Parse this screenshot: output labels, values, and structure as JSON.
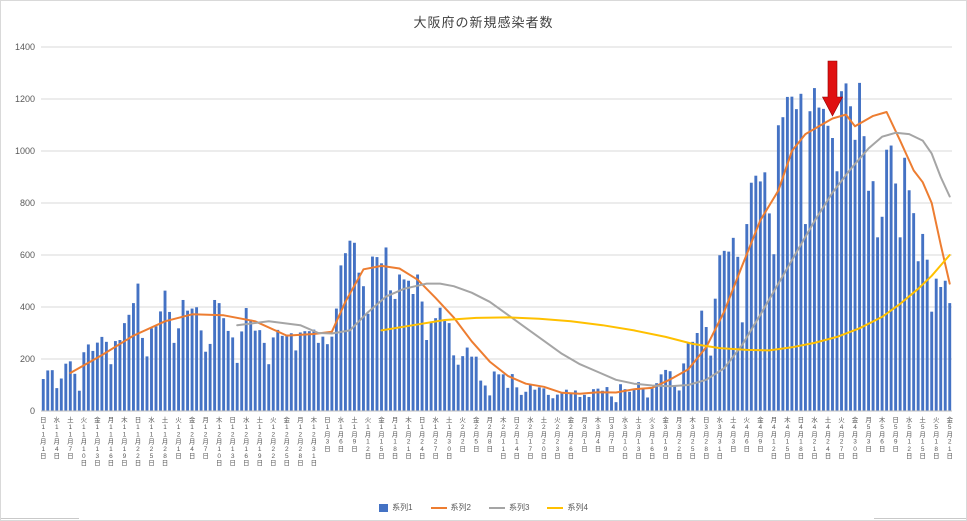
{
  "chart_data": {
    "type": "bar+line",
    "title": "大阪府の新規感染者数",
    "legend_position": "bottom",
    "grid": true,
    "y_axis": {
      "min": 0,
      "max": 1400,
      "step": 200,
      "ticks": [
        0,
        200,
        400,
        600,
        800,
        1000,
        1200,
        1400
      ]
    },
    "n_points": 202,
    "months": [
      {
        "m": "11",
        "days": 30
      },
      {
        "m": "12",
        "days": 31
      },
      {
        "m": "1",
        "days": 31
      },
      {
        "m": "2",
        "days": 28
      },
      {
        "m": "3",
        "days": 31
      },
      {
        "m": "4",
        "days": 30
      },
      {
        "m": "5",
        "days": 21
      }
    ],
    "bar": {
      "name": "系列1",
      "color": "#4472C4",
      "values": [
        123,
        156,
        157,
        88,
        125,
        182,
        191,
        143,
        78,
        226,
        256,
        231,
        263,
        285,
        266,
        180,
        269,
        273,
        338,
        370,
        415,
        490,
        281,
        210,
        318,
        326,
        383,
        463,
        381,
        262,
        318,
        427,
        386,
        394,
        399,
        310,
        228,
        258,
        427,
        415,
        357,
        308,
        283,
        185,
        306,
        396,
        351,
        309,
        311,
        262,
        180,
        283,
        312,
        289,
        294,
        299,
        233,
        302,
        307,
        307,
        313,
        262,
        286,
        257,
        286,
        394,
        560,
        607,
        655,
        647,
        532,
        480,
        374,
        594,
        592,
        568,
        629,
        464,
        431,
        525,
        506,
        501,
        450,
        525,
        421,
        273,
        343,
        357,
        397,
        346,
        338,
        214,
        178,
        211,
        244,
        209,
        209,
        117,
        98,
        60,
        152,
        141,
        141,
        89,
        142,
        91,
        62,
        74,
        100,
        82,
        91,
        87,
        62,
        49,
        63,
        72,
        82,
        69,
        79,
        54,
        62,
        54,
        84,
        86,
        78,
        92,
        56,
        34,
        103,
        84,
        74,
        86,
        111,
        84,
        52,
        87,
        107,
        141,
        158,
        153,
        100,
        79,
        183,
        262,
        266,
        300,
        386,
        323,
        213,
        432,
        599,
        616,
        613,
        666,
        593,
        341,
        719,
        878,
        905,
        883,
        918,
        760,
        603,
        1099,
        1130,
        1208,
        1209,
        1161,
        1220,
        719,
        1153,
        1242,
        1167,
        1162,
        1097,
        1050,
        922,
        1230,
        1260,
        1172,
        1043,
        1262,
        1057,
        847,
        884,
        668,
        747,
        1005,
        1021,
        875,
        668,
        974,
        849,
        761,
        576,
        681,
        582,
        382,
        509,
        477,
        501,
        415
      ]
    },
    "lines": [
      {
        "name": "系列2",
        "color": "#ED7D31",
        "points": [
          [
            6,
            146
          ],
          [
            13,
            215
          ],
          [
            20,
            290
          ],
          [
            27,
            345
          ],
          [
            33,
            372
          ],
          [
            40,
            368
          ],
          [
            47,
            345
          ],
          [
            54,
            290
          ],
          [
            60,
            296
          ],
          [
            64,
            305
          ],
          [
            67,
            420
          ],
          [
            71,
            545
          ],
          [
            75,
            558
          ],
          [
            79,
            548
          ],
          [
            83,
            505
          ],
          [
            87,
            435
          ],
          [
            91,
            360
          ],
          [
            95,
            268
          ],
          [
            99,
            190
          ],
          [
            103,
            135
          ],
          [
            107,
            105
          ],
          [
            111,
            93
          ],
          [
            115,
            70
          ],
          [
            119,
            66
          ],
          [
            123,
            72
          ],
          [
            127,
            71
          ],
          [
            131,
            84
          ],
          [
            135,
            89
          ],
          [
            139,
            121
          ],
          [
            143,
            160
          ],
          [
            147,
            245
          ],
          [
            151,
            383
          ],
          [
            155,
            560
          ],
          [
            159,
            733
          ],
          [
            163,
            848
          ],
          [
            166,
            1000
          ],
          [
            169,
            1065
          ],
          [
            172,
            1095
          ],
          [
            175,
            1125
          ],
          [
            178,
            1140
          ],
          [
            180,
            1095
          ],
          [
            184,
            1135
          ],
          [
            187,
            1150
          ],
          [
            190,
            1040
          ],
          [
            193,
            925
          ],
          [
            195,
            880
          ],
          [
            197,
            800
          ],
          [
            199,
            640
          ],
          [
            201,
            490
          ]
        ]
      },
      {
        "name": "系列3",
        "color": "#A5A5A5",
        "points": [
          [
            43,
            330
          ],
          [
            50,
            345
          ],
          [
            57,
            330
          ],
          [
            61,
            300
          ],
          [
            64,
            298
          ],
          [
            68,
            310
          ],
          [
            72,
            380
          ],
          [
            76,
            440
          ],
          [
            80,
            470
          ],
          [
            85,
            490
          ],
          [
            88,
            490
          ],
          [
            91,
            480
          ],
          [
            95,
            455
          ],
          [
            99,
            420
          ],
          [
            103,
            370
          ],
          [
            107,
            320
          ],
          [
            111,
            270
          ],
          [
            115,
            220
          ],
          [
            119,
            180
          ],
          [
            123,
            150
          ],
          [
            127,
            120
          ],
          [
            131,
            105
          ],
          [
            135,
            98
          ],
          [
            139,
            95
          ],
          [
            143,
            100
          ],
          [
            147,
            120
          ],
          [
            151,
            165
          ],
          [
            155,
            255
          ],
          [
            159,
            370
          ],
          [
            163,
            490
          ],
          [
            167,
            610
          ],
          [
            171,
            730
          ],
          [
            175,
            840
          ],
          [
            179,
            930
          ],
          [
            183,
            1010
          ],
          [
            186,
            1055
          ],
          [
            189,
            1070
          ],
          [
            192,
            1065
          ],
          [
            195,
            1040
          ],
          [
            197,
            990
          ],
          [
            199,
            900
          ],
          [
            201,
            825
          ]
        ]
      },
      {
        "name": "系列4",
        "color": "#FFC000",
        "points": [
          [
            75,
            310
          ],
          [
            82,
            330
          ],
          [
            89,
            350
          ],
          [
            96,
            358
          ],
          [
            103,
            360
          ],
          [
            110,
            355
          ],
          [
            117,
            345
          ],
          [
            124,
            330
          ],
          [
            131,
            310
          ],
          [
            138,
            285
          ],
          [
            144,
            258
          ],
          [
            150,
            242
          ],
          [
            156,
            235
          ],
          [
            161,
            233
          ],
          [
            166,
            245
          ],
          [
            171,
            262
          ],
          [
            176,
            285
          ],
          [
            181,
            318
          ],
          [
            186,
            362
          ],
          [
            190,
            412
          ],
          [
            194,
            470
          ],
          [
            197,
            520
          ],
          [
            199,
            560
          ],
          [
            201,
            600
          ]
        ]
      }
    ],
    "x_ticks": [
      {
        "i": 0,
        "t": "日11月1日"
      },
      {
        "i": 3,
        "t": "水11月4日"
      },
      {
        "i": 6,
        "t": "土11月7日"
      },
      {
        "i": 9,
        "t": "火11月10日"
      },
      {
        "i": 12,
        "t": "金11月13日"
      },
      {
        "i": 15,
        "t": "月11月16日"
      },
      {
        "i": 18,
        "t": "木11月19日"
      },
      {
        "i": 21,
        "t": "日11月22日"
      },
      {
        "i": 24,
        "t": "水11月25日"
      },
      {
        "i": 27,
        "t": "土11月28日"
      },
      {
        "i": 30,
        "t": "火12月1日"
      },
      {
        "i": 33,
        "t": "金12月4日"
      },
      {
        "i": 36,
        "t": "月12月7日"
      },
      {
        "i": 39,
        "t": "木12月10日"
      },
      {
        "i": 42,
        "t": "日12月13日"
      },
      {
        "i": 45,
        "t": "水12月16日"
      },
      {
        "i": 48,
        "t": "土12月19日"
      },
      {
        "i": 51,
        "t": "火12月22日"
      },
      {
        "i": 54,
        "t": "金12月25日"
      },
      {
        "i": 57,
        "t": "月12月28日"
      },
      {
        "i": 60,
        "t": "木12月31日"
      },
      {
        "i": 63,
        "t": "日1月3日"
      },
      {
        "i": 66,
        "t": "水1月6日"
      },
      {
        "i": 69,
        "t": "土1月9日"
      },
      {
        "i": 72,
        "t": "火1月12日"
      },
      {
        "i": 75,
        "t": "金1月15日"
      },
      {
        "i": 78,
        "t": "月1月18日"
      },
      {
        "i": 81,
        "t": "木1月21日"
      },
      {
        "i": 84,
        "t": "日1月24日"
      },
      {
        "i": 87,
        "t": "水1月27日"
      },
      {
        "i": 90,
        "t": "土1月30日"
      },
      {
        "i": 93,
        "t": "火2月2日"
      },
      {
        "i": 96,
        "t": "金2月5日"
      },
      {
        "i": 99,
        "t": "月2月8日"
      },
      {
        "i": 102,
        "t": "木2月11日"
      },
      {
        "i": 105,
        "t": "日2月14日"
      },
      {
        "i": 108,
        "t": "水2月17日"
      },
      {
        "i": 111,
        "t": "土2月20日"
      },
      {
        "i": 114,
        "t": "火2月23日"
      },
      {
        "i": 117,
        "t": "金2月26日"
      },
      {
        "i": 120,
        "t": "月3月1日"
      },
      {
        "i": 123,
        "t": "木3月4日"
      },
      {
        "i": 126,
        "t": "日3月7日"
      },
      {
        "i": 129,
        "t": "水3月10日"
      },
      {
        "i": 132,
        "t": "土3月13日"
      },
      {
        "i": 135,
        "t": "火3月16日"
      },
      {
        "i": 138,
        "t": "金3月19日"
      },
      {
        "i": 141,
        "t": "月3月22日"
      },
      {
        "i": 144,
        "t": "木3月25日"
      },
      {
        "i": 147,
        "t": "日3月28日"
      },
      {
        "i": 150,
        "t": "水3月31日"
      },
      {
        "i": 153,
        "t": "土4月3日"
      },
      {
        "i": 156,
        "t": "火4月6日"
      },
      {
        "i": 159,
        "t": "金4月9日"
      },
      {
        "i": 162,
        "t": "月4月12日"
      },
      {
        "i": 165,
        "t": "木4月15日"
      },
      {
        "i": 168,
        "t": "日4月18日"
      },
      {
        "i": 171,
        "t": "水4月21日"
      },
      {
        "i": 174,
        "t": "土4月24日"
      },
      {
        "i": 177,
        "t": "火4月27日"
      },
      {
        "i": 180,
        "t": "金4月30日"
      },
      {
        "i": 183,
        "t": "月5月3日"
      },
      {
        "i": 186,
        "t": "木5月6日"
      },
      {
        "i": 189,
        "t": "日5月9日"
      },
      {
        "i": 192,
        "t": "水5月12日"
      },
      {
        "i": 195,
        "t": "土5月15日"
      },
      {
        "i": 198,
        "t": "火5月18日"
      },
      {
        "i": 201,
        "t": "金5月21日"
      }
    ],
    "legend": [
      {
        "label": "系列1",
        "type": "bar",
        "color": "#4472C4"
      },
      {
        "label": "系列2",
        "type": "line",
        "color": "#ED7D31"
      },
      {
        "label": "系列3",
        "type": "line",
        "color": "#A5A5A5"
      },
      {
        "label": "系列4",
        "type": "line",
        "color": "#FFC000"
      }
    ],
    "annotation": {
      "shape": "down-arrow",
      "color": "#E01010",
      "index": 175
    }
  }
}
